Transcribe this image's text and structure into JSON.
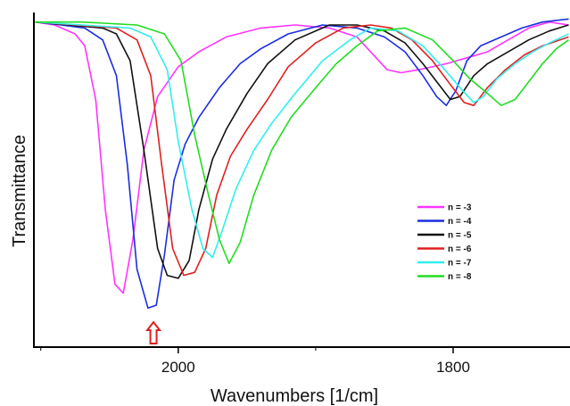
{
  "chart_data": {
    "type": "line",
    "title": "",
    "xlabel": "Wavenumbers [1/cm]",
    "ylabel": "Transmittance",
    "x_reversed": true,
    "xlim": [
      2105,
      1715
    ],
    "ylim": [
      0,
      1
    ],
    "y_ticks_shown": false,
    "grid": false,
    "legend_position": "center-right",
    "x_ticks": [
      2000,
      1800
    ],
    "x_tick_labels": [
      "2000",
      "1800"
    ],
    "marker": {
      "x": 2018,
      "direction": "up",
      "color": "#e02020",
      "shape": "hollow-arrow"
    },
    "series": [
      {
        "name": "n = -3",
        "color": "#ff33ff",
        "points": [
          [
            2104,
            0.98
          ],
          [
            2090,
            0.97
          ],
          [
            2075,
            0.94
          ],
          [
            2068,
            0.9
          ],
          [
            2060,
            0.72
          ],
          [
            2053,
            0.35
          ],
          [
            2046,
            0.1
          ],
          [
            2040,
            0.07
          ],
          [
            2033,
            0.25
          ],
          [
            2025,
            0.55
          ],
          [
            2015,
            0.73
          ],
          [
            2000,
            0.83
          ],
          [
            1985,
            0.88
          ],
          [
            1965,
            0.93
          ],
          [
            1940,
            0.96
          ],
          [
            1915,
            0.97
          ],
          [
            1890,
            0.96
          ],
          [
            1870,
            0.93
          ],
          [
            1858,
            0.87
          ],
          [
            1848,
            0.82
          ],
          [
            1838,
            0.81
          ],
          [
            1825,
            0.82
          ],
          [
            1805,
            0.84
          ],
          [
            1790,
            0.86
          ],
          [
            1775,
            0.88
          ],
          [
            1760,
            0.92
          ],
          [
            1745,
            0.96
          ],
          [
            1730,
            0.98
          ],
          [
            1716,
            0.97
          ]
        ]
      },
      {
        "name": "n = -4",
        "color": "#1a2ee0",
        "points": [
          [
            2104,
            0.98
          ],
          [
            2085,
            0.97
          ],
          [
            2068,
            0.96
          ],
          [
            2055,
            0.92
          ],
          [
            2045,
            0.8
          ],
          [
            2037,
            0.5
          ],
          [
            2030,
            0.15
          ],
          [
            2022,
            0.02
          ],
          [
            2016,
            0.03
          ],
          [
            2010,
            0.2
          ],
          [
            2003,
            0.45
          ],
          [
            1995,
            0.57
          ],
          [
            1985,
            0.66
          ],
          [
            1970,
            0.76
          ],
          [
            1955,
            0.84
          ],
          [
            1940,
            0.89
          ],
          [
            1920,
            0.94
          ],
          [
            1895,
            0.97
          ],
          [
            1870,
            0.96
          ],
          [
            1850,
            0.93
          ],
          [
            1835,
            0.88
          ],
          [
            1822,
            0.8
          ],
          [
            1812,
            0.73
          ],
          [
            1805,
            0.7
          ],
          [
            1798,
            0.75
          ],
          [
            1790,
            0.85
          ],
          [
            1780,
            0.9
          ],
          [
            1765,
            0.93
          ],
          [
            1750,
            0.96
          ],
          [
            1735,
            0.98
          ],
          [
            1716,
            0.99
          ]
        ]
      },
      {
        "name": "n = -5",
        "color": "#111111",
        "points": [
          [
            2104,
            0.98
          ],
          [
            2080,
            0.97
          ],
          [
            2055,
            0.96
          ],
          [
            2045,
            0.94
          ],
          [
            2035,
            0.85
          ],
          [
            2025,
            0.55
          ],
          [
            2015,
            0.22
          ],
          [
            2008,
            0.13
          ],
          [
            2000,
            0.12
          ],
          [
            1992,
            0.18
          ],
          [
            1985,
            0.35
          ],
          [
            1975,
            0.52
          ],
          [
            1965,
            0.62
          ],
          [
            1950,
            0.74
          ],
          [
            1935,
            0.84
          ],
          [
            1915,
            0.92
          ],
          [
            1890,
            0.97
          ],
          [
            1870,
            0.97
          ],
          [
            1850,
            0.95
          ],
          [
            1835,
            0.91
          ],
          [
            1822,
            0.84
          ],
          [
            1812,
            0.78
          ],
          [
            1802,
            0.72
          ],
          [
            1795,
            0.73
          ],
          [
            1785,
            0.8
          ],
          [
            1775,
            0.84
          ],
          [
            1760,
            0.88
          ],
          [
            1745,
            0.92
          ],
          [
            1730,
            0.95
          ],
          [
            1716,
            0.97
          ]
        ]
      },
      {
        "name": "n = -6",
        "color": "#e02020",
        "points": [
          [
            2104,
            0.98
          ],
          [
            2075,
            0.97
          ],
          [
            2045,
            0.96
          ],
          [
            2030,
            0.92
          ],
          [
            2020,
            0.8
          ],
          [
            2012,
            0.5
          ],
          [
            2004,
            0.22
          ],
          [
            1996,
            0.13
          ],
          [
            1988,
            0.14
          ],
          [
            1980,
            0.22
          ],
          [
            1972,
            0.4
          ],
          [
            1962,
            0.53
          ],
          [
            1950,
            0.62
          ],
          [
            1935,
            0.72
          ],
          [
            1920,
            0.83
          ],
          [
            1900,
            0.91
          ],
          [
            1880,
            0.96
          ],
          [
            1860,
            0.97
          ],
          [
            1845,
            0.96
          ],
          [
            1830,
            0.92
          ],
          [
            1815,
            0.85
          ],
          [
            1802,
            0.77
          ],
          [
            1792,
            0.71
          ],
          [
            1785,
            0.7
          ],
          [
            1775,
            0.76
          ],
          [
            1762,
            0.82
          ],
          [
            1748,
            0.87
          ],
          [
            1735,
            0.9
          ],
          [
            1716,
            0.93
          ]
        ]
      },
      {
        "name": "n = -7",
        "color": "#33eeee",
        "points": [
          [
            2104,
            0.98
          ],
          [
            2070,
            0.97
          ],
          [
            2035,
            0.96
          ],
          [
            2020,
            0.93
          ],
          [
            2008,
            0.82
          ],
          [
            2000,
            0.58
          ],
          [
            1990,
            0.35
          ],
          [
            1982,
            0.22
          ],
          [
            1975,
            0.19
          ],
          [
            1968,
            0.28
          ],
          [
            1958,
            0.42
          ],
          [
            1945,
            0.55
          ],
          [
            1932,
            0.64
          ],
          [
            1915,
            0.74
          ],
          [
            1895,
            0.85
          ],
          [
            1875,
            0.92
          ],
          [
            1860,
            0.96
          ],
          [
            1840,
            0.95
          ],
          [
            1822,
            0.9
          ],
          [
            1808,
            0.83
          ],
          [
            1795,
            0.76
          ],
          [
            1785,
            0.71
          ],
          [
            1778,
            0.73
          ],
          [
            1768,
            0.79
          ],
          [
            1755,
            0.84
          ],
          [
            1742,
            0.88
          ],
          [
            1730,
            0.91
          ],
          [
            1716,
            0.94
          ]
        ]
      },
      {
        "name": "n = -8",
        "color": "#22dd22",
        "points": [
          [
            2104,
            0.98
          ],
          [
            2070,
            0.98
          ],
          [
            2030,
            0.97
          ],
          [
            2010,
            0.94
          ],
          [
            1998,
            0.85
          ],
          [
            1988,
            0.6
          ],
          [
            1978,
            0.4
          ],
          [
            1970,
            0.25
          ],
          [
            1963,
            0.17
          ],
          [
            1955,
            0.24
          ],
          [
            1945,
            0.4
          ],
          [
            1932,
            0.55
          ],
          [
            1918,
            0.66
          ],
          [
            1900,
            0.76
          ],
          [
            1885,
            0.84
          ],
          [
            1870,
            0.9
          ],
          [
            1855,
            0.95
          ],
          [
            1835,
            0.96
          ],
          [
            1815,
            0.92
          ],
          [
            1800,
            0.85
          ],
          [
            1788,
            0.79
          ],
          [
            1775,
            0.74
          ],
          [
            1765,
            0.7
          ],
          [
            1755,
            0.72
          ],
          [
            1745,
            0.78
          ],
          [
            1735,
            0.84
          ],
          [
            1725,
            0.89
          ],
          [
            1716,
            0.92
          ]
        ]
      }
    ]
  }
}
